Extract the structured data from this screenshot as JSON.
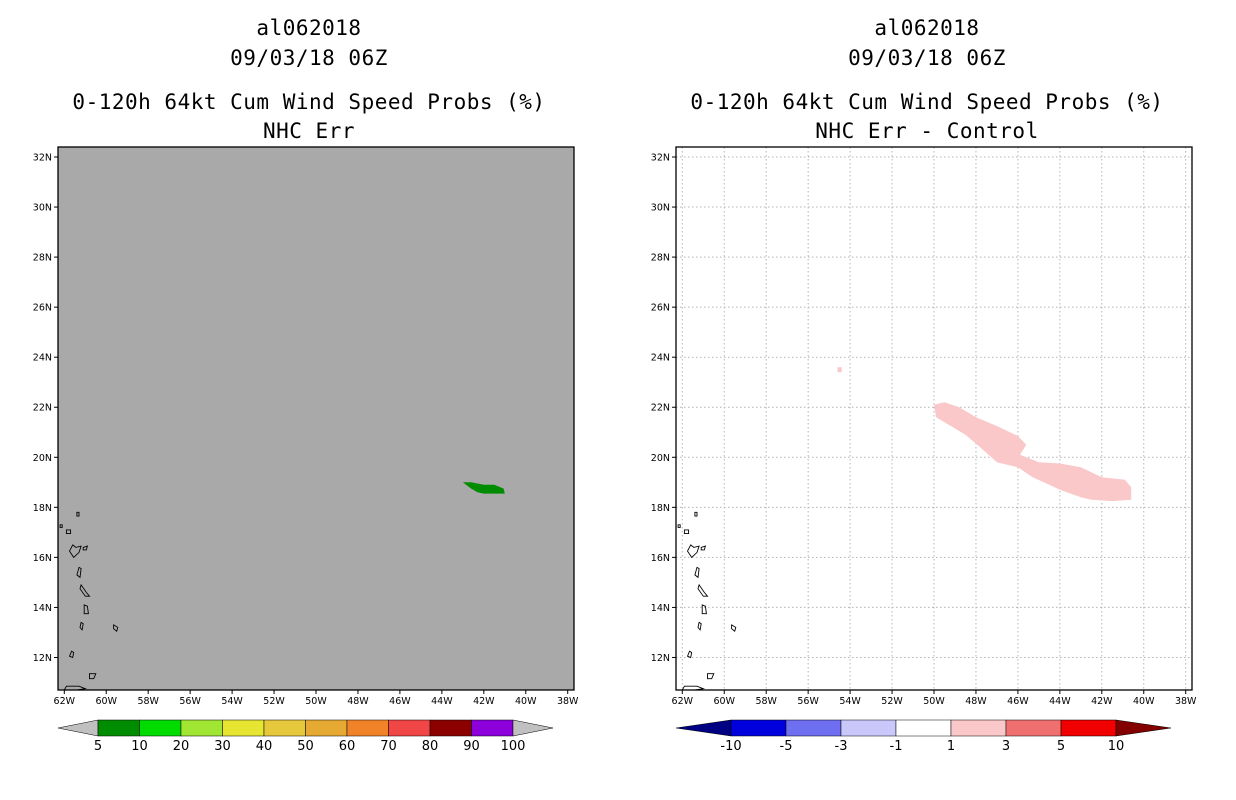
{
  "chart_data": [
    {
      "type": "heatmap",
      "storm_id": "al062018",
      "datetime": "09/03/18 06Z",
      "title": "0-120h 64kt Cum Wind Speed Probs (%)",
      "subtitle": "NHC Err",
      "x_ticks": [
        "62W",
        "60W",
        "58W",
        "56W",
        "54W",
        "52W",
        "50W",
        "48W",
        "46W",
        "44W",
        "42W",
        "40W",
        "38W"
      ],
      "y_ticks": [
        "12N",
        "14N",
        "16N",
        "18N",
        "20N",
        "22N",
        "24N",
        "26N",
        "28N",
        "30N",
        "32N"
      ],
      "xlim": [
        -62.3,
        -37.7
      ],
      "ylim": [
        10.7,
        32.4
      ],
      "background": "#a9a9a9",
      "gridlines": false,
      "colorbar": {
        "labels": [
          "5",
          "10",
          "20",
          "30",
          "40",
          "50",
          "60",
          "70",
          "80",
          "90",
          "100"
        ],
        "colors": [
          "#c0c0c0",
          "#008c00",
          "#00dc00",
          "#a0e632",
          "#e6e632",
          "#e6c83c",
          "#e6aa32",
          "#f08228",
          "#f04646",
          "#8c0000",
          "#8c00dc",
          "#c0c0c0"
        ]
      },
      "regions": [
        {
          "category": "5-10",
          "color": "#008c00",
          "outline": [
            [
              -43.0,
              19.0
            ],
            [
              -42.6,
              19.0
            ],
            [
              -42.0,
              18.9
            ],
            [
              -41.5,
              18.9
            ],
            [
              -41.05,
              18.75
            ],
            [
              -41.0,
              18.55
            ],
            [
              -41.5,
              18.55
            ],
            [
              -42.0,
              18.55
            ],
            [
              -42.3,
              18.6
            ],
            [
              -42.6,
              18.75
            ]
          ]
        }
      ]
    },
    {
      "type": "heatmap",
      "storm_id": "al062018",
      "datetime": "09/03/18 06Z",
      "title": "0-120h 64kt Cum Wind Speed Probs (%)",
      "subtitle": "NHC Err - Control",
      "x_ticks": [
        "62W",
        "60W",
        "58W",
        "56W",
        "54W",
        "52W",
        "50W",
        "48W",
        "46W",
        "44W",
        "42W",
        "40W",
        "38W"
      ],
      "y_ticks": [
        "12N",
        "14N",
        "16N",
        "18N",
        "20N",
        "22N",
        "24N",
        "26N",
        "28N",
        "30N",
        "32N"
      ],
      "xlim": [
        -62.3,
        -37.7
      ],
      "ylim": [
        10.7,
        32.4
      ],
      "background": "#ffffff",
      "gridlines": true,
      "colorbar": {
        "labels": [
          "-10",
          "-5",
          "-3",
          "-1",
          "1",
          "3",
          "5",
          "10"
        ],
        "colors": [
          "#000082",
          "#0000dc",
          "#6e6ef0",
          "#c8c8fa",
          "#ffffff",
          "#fac8c8",
          "#f07070",
          "#f00000",
          "#820000"
        ]
      },
      "regions": [
        {
          "category": "1-3",
          "color": "#fac8c8",
          "outline": [
            [
              -50.0,
              22.1
            ],
            [
              -49.5,
              22.2
            ],
            [
              -48.8,
              22.0
            ],
            [
              -48.0,
              21.6
            ],
            [
              -47.0,
              21.25
            ],
            [
              -46.0,
              20.85
            ],
            [
              -45.6,
              20.5
            ],
            [
              -45.9,
              20.1
            ],
            [
              -45.0,
              19.8
            ],
            [
              -44.0,
              19.75
            ],
            [
              -43.0,
              19.6
            ],
            [
              -42.0,
              19.2
            ],
            [
              -40.9,
              19.1
            ],
            [
              -40.6,
              18.8
            ],
            [
              -40.6,
              18.3
            ],
            [
              -41.5,
              18.25
            ],
            [
              -42.5,
              18.3
            ],
            [
              -43.0,
              18.4
            ],
            [
              -44.0,
              18.7
            ],
            [
              -44.5,
              18.9
            ],
            [
              -45.3,
              19.2
            ],
            [
              -46.0,
              19.6
            ],
            [
              -47.0,
              19.8
            ],
            [
              -47.8,
              20.4
            ],
            [
              -48.5,
              20.9
            ],
            [
              -49.3,
              21.3
            ],
            [
              -49.9,
              21.6
            ]
          ]
        },
        {
          "category": "1-3",
          "color": "#fac8c8",
          "outline": [
            [
              -54.6,
              23.6
            ],
            [
              -54.4,
              23.6
            ],
            [
              -54.4,
              23.4
            ],
            [
              -54.6,
              23.4
            ]
          ]
        }
      ]
    }
  ]
}
